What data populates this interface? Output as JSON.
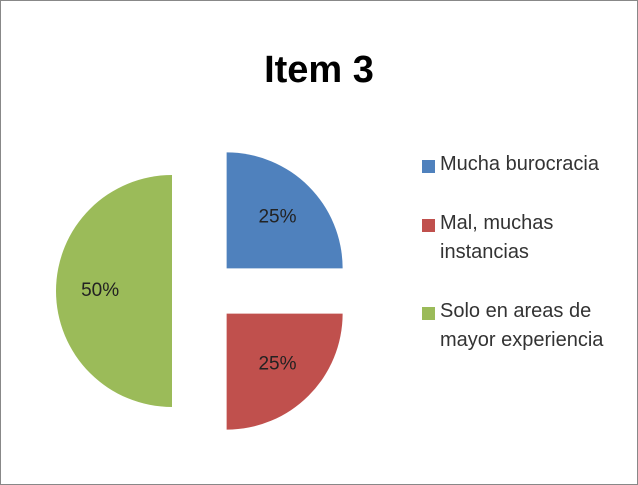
{
  "chart_data": {
    "type": "pie",
    "title": "Item 3",
    "categories": [
      "Mucha burocracia",
      "Mal, muchas instancias",
      "Solo en areas de mayor experiencia"
    ],
    "values": [
      25,
      25,
      50
    ],
    "value_labels": [
      "25%",
      "25%",
      "50%"
    ],
    "colors": [
      "#4f81bd",
      "#c0504d",
      "#9bbb59"
    ],
    "legend": "right",
    "exploded": true
  }
}
